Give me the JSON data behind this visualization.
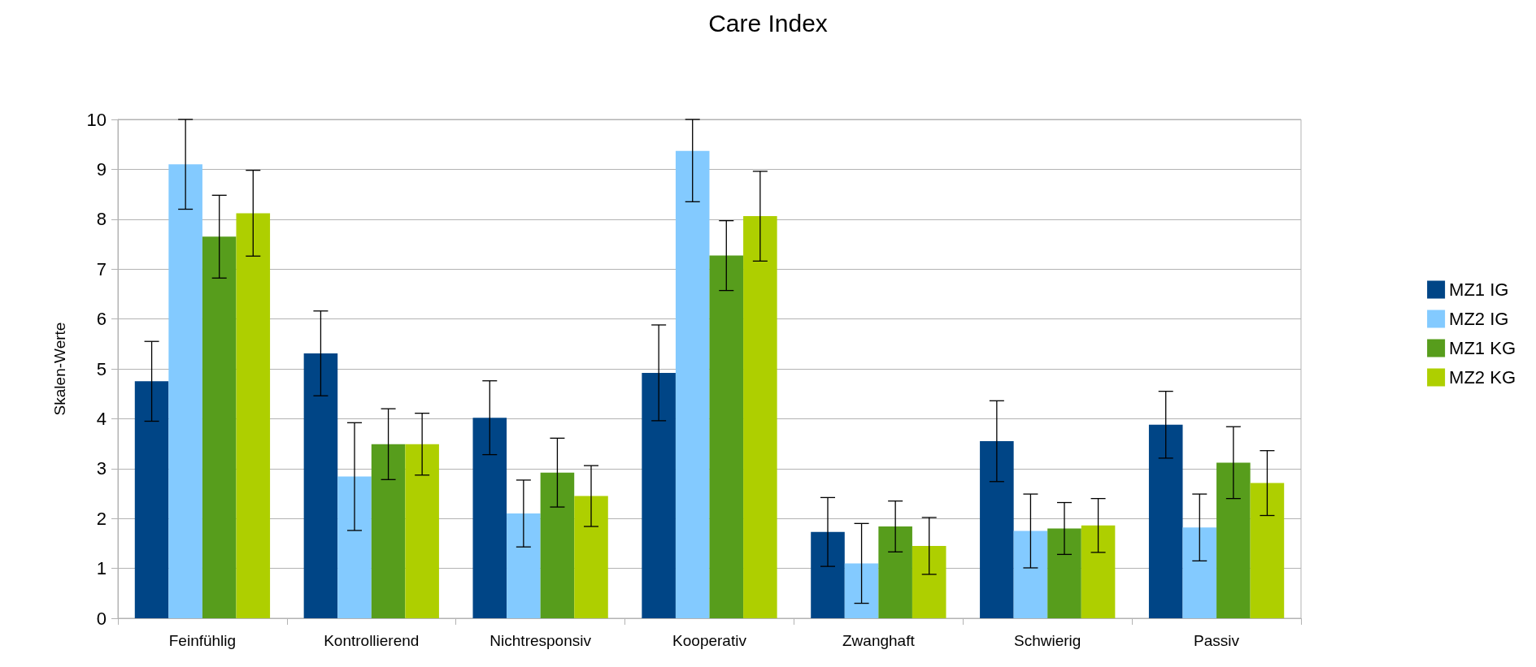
{
  "chart_data": {
    "type": "bar",
    "title": "Care Index",
    "ylabel": "Skalen-Werte",
    "categories": [
      "Feinfühlig",
      "Kontrollierend",
      "Nichtresponsiv",
      "Kooperativ",
      "Zwanghaft",
      "Schwierig",
      "Passiv"
    ],
    "series": [
      {
        "name": "MZ1 IG",
        "color": "#004586",
        "values": [
          4.75,
          5.31,
          4.02,
          4.92,
          1.73,
          3.55,
          3.88
        ],
        "errors": [
          0.8,
          0.85,
          0.74,
          0.96,
          0.69,
          0.81,
          0.67
        ]
      },
      {
        "name": "MZ2 IG",
        "color": "#83caff",
        "values": [
          9.1,
          2.84,
          2.1,
          9.37,
          1.1,
          1.75,
          1.82
        ],
        "errors": [
          0.9,
          1.08,
          0.67,
          [
            8.35,
            10
          ],
          0.8,
          0.74,
          0.67
        ]
      },
      {
        "name": "MZ1 KG",
        "color": "#579d1c",
        "values": [
          7.65,
          3.49,
          2.92,
          7.27,
          1.84,
          1.8,
          3.12
        ],
        "errors": [
          0.83,
          0.71,
          0.69,
          0.7,
          0.51,
          0.52,
          0.72
        ]
      },
      {
        "name": "MZ2 KG",
        "color": "#aecf00",
        "values": [
          8.12,
          3.49,
          2.45,
          8.06,
          1.45,
          1.86,
          2.71
        ],
        "errors": [
          0.86,
          0.62,
          0.61,
          0.9,
          0.57,
          0.54,
          0.65
        ]
      }
    ],
    "ylim": [
      0,
      10
    ],
    "yticks": [
      0,
      1,
      2,
      3,
      4,
      5,
      6,
      7,
      8,
      9,
      10
    ],
    "grid": "y",
    "legend": "right"
  }
}
